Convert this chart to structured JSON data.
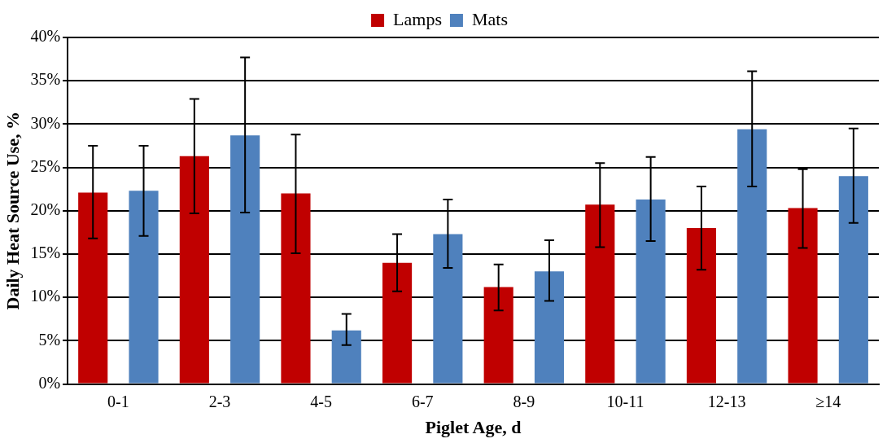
{
  "chart_data": {
    "type": "bar",
    "xlabel": "Piglet Age, d",
    "ylabel": "Daily Heat Source Use, %",
    "categories": [
      "0-1",
      "2-3",
      "4-5",
      "6-7",
      "8-9",
      "10-11",
      "12-13",
      "≥14"
    ],
    "series": [
      {
        "name": "Lamps",
        "color": "#c00000",
        "values": [
          22.1,
          26.3,
          22.0,
          14.0,
          11.2,
          20.7,
          18.0,
          20.3
        ],
        "errors": [
          [
            16.8,
            27.5
          ],
          [
            19.7,
            32.9
          ],
          [
            15.1,
            28.8
          ],
          [
            10.7,
            17.3
          ],
          [
            8.5,
            13.8
          ],
          [
            15.8,
            25.5
          ],
          [
            13.2,
            22.8
          ],
          [
            15.7,
            24.8
          ]
        ]
      },
      {
        "name": "Mats",
        "color": "#4f81bd",
        "values": [
          22.3,
          28.7,
          6.2,
          17.3,
          13.0,
          21.3,
          29.4,
          24.0
        ],
        "errors": [
          [
            17.1,
            27.5
          ],
          [
            19.8,
            37.7
          ],
          [
            4.5,
            8.1
          ],
          [
            13.4,
            21.3
          ],
          [
            9.6,
            16.6
          ],
          [
            16.5,
            26.2
          ],
          [
            22.8,
            36.1
          ],
          [
            18.6,
            29.5
          ]
        ]
      }
    ],
    "ylim": [
      0,
      40
    ],
    "yticks": [
      {
        "value": 0,
        "label": "0%"
      },
      {
        "value": 5,
        "label": "5%"
      },
      {
        "value": 10,
        "label": "10%"
      },
      {
        "value": 15,
        "label": "15%"
      },
      {
        "value": 20,
        "label": "20%"
      },
      {
        "value": 25,
        "label": "25%"
      },
      {
        "value": 30,
        "label": "30%"
      },
      {
        "value": 35,
        "label": "35%"
      },
      {
        "value": 40,
        "label": "40%"
      }
    ],
    "grid": "y",
    "legend": "top"
  }
}
